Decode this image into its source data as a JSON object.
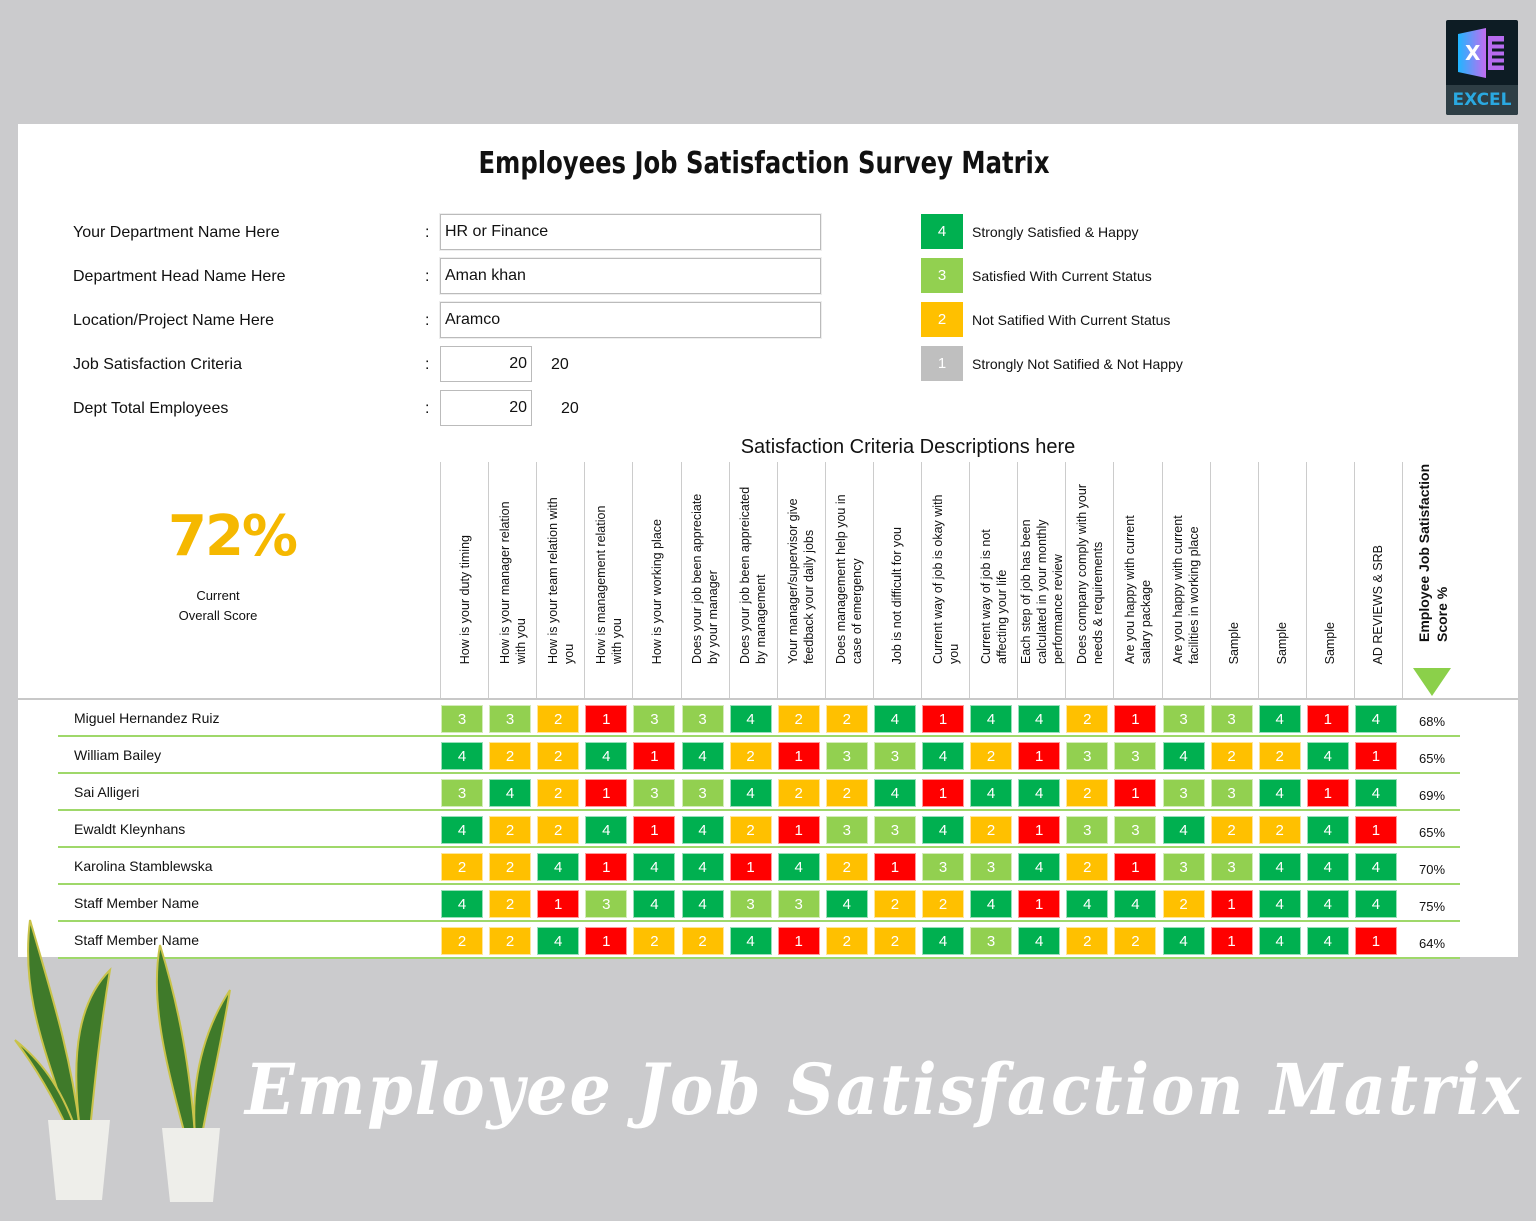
{
  "logo": {
    "label": "EXCEL"
  },
  "title": "Employees Job Satisfaction Survey Matrix",
  "form": [
    {
      "label": "Your Department Name Here",
      "value": "HR or Finance"
    },
    {
      "label": "Department Head Name Here",
      "value": "Aman khan"
    },
    {
      "label": "Location/Project Name Here",
      "value": "Aramco"
    },
    {
      "label": "Job Satisfaction Criteria",
      "value": "20",
      "extra": "20"
    },
    {
      "label": "Dept Total Employees",
      "value": "20",
      "extra": "20"
    }
  ],
  "colon": ":",
  "legend": [
    {
      "value": "4",
      "label": "Strongly Satisfied & Happy",
      "color": "#00b050"
    },
    {
      "value": "3",
      "label": "Satisfied With Current Status",
      "color": "#92d050"
    },
    {
      "value": "2",
      "label": "Not Satified With Current Status",
      "color": "#ffc000"
    },
    {
      "value": "1",
      "label": "Strongly Not Satified & Not Happy",
      "color": "#bfbfbf"
    }
  ],
  "overall": {
    "value": "72%",
    "label_line1": "Current",
    "label_line2": "Overall Score"
  },
  "criteria_title": "Satisfaction Criteria Descriptions here",
  "criteria": [
    "How is your duty timing",
    "How is your manager relation with you",
    "How is your team relation with you",
    "How is management relation with you",
    "How is your working place",
    "Does your job been appreciate by your manager",
    "Does your job been appreicated by management",
    "Your manager/supervisor give feedback your daily jobs",
    "Does management help you in case of emergency",
    "Job is not difficult for you",
    "Current way of job is okay with you",
    "Current way of job is not affecting your life",
    "Each step of job has been calculated in your monthly performance review",
    "Does company comply with your needs & requirements",
    "Are you happy with current salary package",
    "Are you happy with current facilities in working place",
    "Sample",
    "Sample",
    "Sample",
    "AD REVIEWS & SRB"
  ],
  "score_header": "Employee Job Satisfaction Score %",
  "score_colors": {
    "4": "#00b050",
    "3": "#92d050",
    "2": "#ffc000",
    "1": "#ff0000"
  },
  "employees": [
    {
      "name": "Miguel Hernandez Ruiz",
      "scores": [
        3,
        3,
        2,
        1,
        3,
        3,
        4,
        2,
        2,
        4,
        1,
        4,
        4,
        2,
        1,
        3,
        3,
        4,
        1,
        4
      ],
      "pct": "68%"
    },
    {
      "name": "William Bailey",
      "scores": [
        4,
        2,
        2,
        4,
        1,
        4,
        2,
        1,
        3,
        3,
        4,
        2,
        1,
        3,
        3,
        4,
        2,
        2,
        4,
        1
      ],
      "pct": "65%"
    },
    {
      "name": "Sai Alligeri",
      "scores": [
        3,
        4,
        2,
        1,
        3,
        3,
        4,
        2,
        2,
        4,
        1,
        4,
        4,
        2,
        1,
        3,
        3,
        4,
        1,
        4
      ],
      "pct": "69%"
    },
    {
      "name": "Ewaldt Kleynhans",
      "scores": [
        4,
        2,
        2,
        4,
        1,
        4,
        2,
        1,
        3,
        3,
        4,
        2,
        1,
        3,
        3,
        4,
        2,
        2,
        4,
        1
      ],
      "pct": "65%"
    },
    {
      "name": "Karolina Stamblewska",
      "scores": [
        2,
        2,
        4,
        1,
        4,
        4,
        1,
        4,
        2,
        1,
        3,
        3,
        4,
        2,
        1,
        3,
        3,
        4,
        4,
        4
      ],
      "pct": "70%"
    },
    {
      "name": "Staff Member Name",
      "scores": [
        4,
        2,
        1,
        3,
        4,
        4,
        3,
        3,
        4,
        2,
        2,
        4,
        1,
        4,
        4,
        2,
        1,
        4,
        4,
        4
      ],
      "pct": "75%"
    },
    {
      "name": "Staff Member Name",
      "scores": [
        2,
        2,
        4,
        1,
        2,
        2,
        4,
        1,
        2,
        2,
        4,
        3,
        4,
        2,
        2,
        4,
        1,
        4,
        4,
        1
      ],
      "pct": "64%"
    }
  ],
  "banner": "Employee Job Satisfaction Matrix"
}
